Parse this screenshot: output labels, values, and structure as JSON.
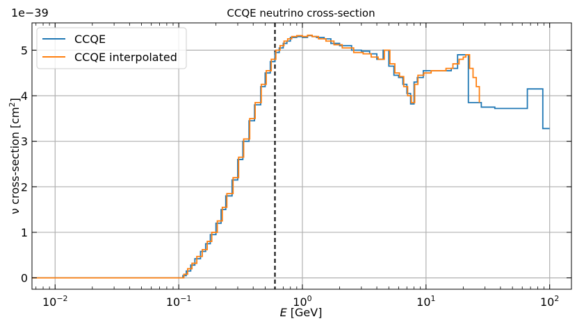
{
  "chart_data": {
    "type": "line",
    "title": "CCQE neutrino cross-section",
    "xlabel_italic": "E",
    "xlabel_unit": " [GeV]",
    "ylabel_prefix": "ν cross-section [cm",
    "ylabel_sup": "2",
    "ylabel_suffix": "]",
    "y_offset_label": "1e−39",
    "xscale": "log",
    "xlim": [
      0.0065,
      150
    ],
    "ylim": [
      -0.25,
      5.6
    ],
    "x_ticks": [
      {
        "base": "10",
        "exp": "−2",
        "value": 0.01
      },
      {
        "base": "10",
        "exp": "−1",
        "value": 0.1
      },
      {
        "base": "10",
        "exp": "0",
        "value": 1
      },
      {
        "base": "10",
        "exp": "1",
        "value": 10
      },
      {
        "base": "10",
        "exp": "2",
        "value": 100
      }
    ],
    "y_ticks": [
      "0",
      "1",
      "2",
      "3",
      "4",
      "5"
    ],
    "grid": true,
    "legend_position": "top-left",
    "vline_x": 0.6,
    "series": [
      {
        "name": "CCQE",
        "color": "#1f77b4",
        "step": true,
        "x": [
          0.0065,
          0.108,
          0.115,
          0.125,
          0.135,
          0.15,
          0.165,
          0.18,
          0.2,
          0.22,
          0.24,
          0.27,
          0.3,
          0.33,
          0.37,
          0.41,
          0.46,
          0.5,
          0.55,
          0.6,
          0.65,
          0.7,
          0.75,
          0.8,
          0.9,
          1.0,
          1.1,
          1.2,
          1.3,
          1.5,
          1.7,
          2.0,
          2.5,
          3.0,
          3.5,
          4.0,
          4.5,
          5.0,
          5.5,
          6.0,
          6.5,
          7.0,
          7.5,
          8.0,
          8.5,
          9.5,
          11.0,
          12.5,
          14.0,
          16.0,
          18.0,
          20.0,
          22.0,
          24.0,
          28.0,
          36.0,
          66.0,
          88.0,
          100.0
        ],
        "values": [
          0.0,
          0.05,
          0.15,
          0.28,
          0.42,
          0.58,
          0.75,
          0.95,
          1.2,
          1.5,
          1.8,
          2.15,
          2.6,
          3.0,
          3.45,
          3.8,
          4.2,
          4.5,
          4.75,
          4.95,
          5.05,
          5.15,
          5.2,
          5.28,
          5.3,
          5.28,
          5.32,
          5.3,
          5.28,
          5.25,
          5.15,
          5.1,
          5.0,
          4.98,
          4.92,
          4.8,
          5.0,
          4.65,
          4.45,
          4.4,
          4.25,
          4.05,
          3.82,
          4.3,
          4.4,
          4.55,
          4.55,
          4.55,
          4.55,
          4.6,
          4.9,
          4.9,
          3.85,
          3.85,
          3.75,
          3.72,
          4.15,
          3.28,
          3.28
        ]
      },
      {
        "name": "CCQE interpolated",
        "color": "#ff7f0e",
        "step": true,
        "x": [
          0.0065,
          0.11,
          0.118,
          0.128,
          0.14,
          0.155,
          0.17,
          0.185,
          0.205,
          0.225,
          0.245,
          0.275,
          0.305,
          0.335,
          0.375,
          0.415,
          0.465,
          0.51,
          0.56,
          0.61,
          0.66,
          0.71,
          0.76,
          0.82,
          0.9,
          1.0,
          1.1,
          1.2,
          1.35,
          1.55,
          1.8,
          2.1,
          2.6,
          3.1,
          3.6,
          4.1,
          4.6,
          5.1,
          5.6,
          6.1,
          6.6,
          7.1,
          7.6,
          8.1,
          8.6,
          9.6,
          11.0,
          12.5,
          14.5,
          16.5,
          18.5,
          20.0,
          21.0,
          22.5,
          24.0,
          25.5,
          27.0
        ],
        "values": [
          0.0,
          0.08,
          0.2,
          0.32,
          0.47,
          0.62,
          0.8,
          1.0,
          1.25,
          1.55,
          1.85,
          2.2,
          2.65,
          3.05,
          3.5,
          3.85,
          4.25,
          4.55,
          4.8,
          5.0,
          5.1,
          5.2,
          5.25,
          5.3,
          5.32,
          5.3,
          5.33,
          5.3,
          5.25,
          5.2,
          5.12,
          5.05,
          4.95,
          4.92,
          4.85,
          4.8,
          5.0,
          4.7,
          4.5,
          4.42,
          4.2,
          4.0,
          3.85,
          4.25,
          4.45,
          4.5,
          4.55,
          4.55,
          4.6,
          4.7,
          4.8,
          4.85,
          4.9,
          4.6,
          4.4,
          4.2,
          3.85
        ]
      }
    ]
  }
}
